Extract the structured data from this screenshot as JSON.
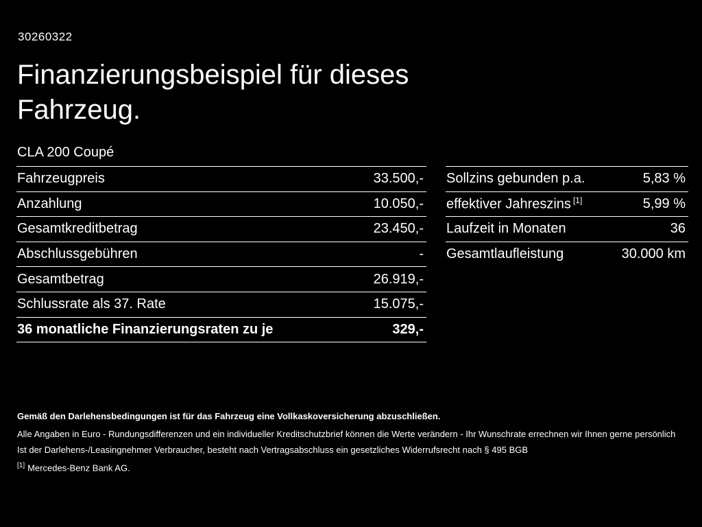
{
  "header": {
    "doc_number": "30260322",
    "title_line1": "Finanzierungsbeispiel für dieses",
    "title_line2": "Fahrzeug.",
    "model": "CLA 200 Coupé"
  },
  "left_table": {
    "rows": [
      {
        "label": "Fahrzeugpreis",
        "value": "33.500,-"
      },
      {
        "label": "Anzahlung",
        "value": "10.050,-"
      },
      {
        "label": "Gesamtkreditbetrag",
        "value": "23.450,-"
      },
      {
        "label": "Abschlussgebühren",
        "value": "-"
      },
      {
        "label": "Gesamtbetrag",
        "value": "26.919,-"
      },
      {
        "label": "Schlussrate als 37. Rate",
        "value": "15.075,-"
      },
      {
        "label": "36 monatliche Finanzierungsraten zu je",
        "value": "329,-"
      }
    ]
  },
  "right_table": {
    "rows": [
      {
        "label": "Sollzins gebunden p.a.",
        "value": "5,83 %"
      },
      {
        "label": "effektiver Jahreszins",
        "sup": "[1]",
        "value": "5,99 %"
      },
      {
        "label": "Laufzeit in Monaten",
        "value": "36"
      },
      {
        "label": "Gesamtlaufleistung",
        "value": "30.000 km"
      }
    ]
  },
  "footer": {
    "bold_line": "Gemäß den Darlehensbedingungen ist für das Fahrzeug eine Vollkaskoversicherung abzuschließen.",
    "line2": "Alle Angaben in Euro - Rundungsdifferenzen und ein individueller Kreditschutzbrief können die Werte verändern - Ihr Wunschrate errechnen wir Ihnen gerne persönlich",
    "line3": "Ist der Darlehens-/Leasingnehmer Verbraucher, besteht nach Vertragsabschluss ein gesetzliches Widerrufsrecht nach § 495 BGB",
    "footnote_marker": "[1]",
    "footnote_text": "Mercedes-Benz Bank AG."
  },
  "colors": {
    "background": "#000000",
    "text": "#ffffff",
    "rule": "#ffffff"
  }
}
